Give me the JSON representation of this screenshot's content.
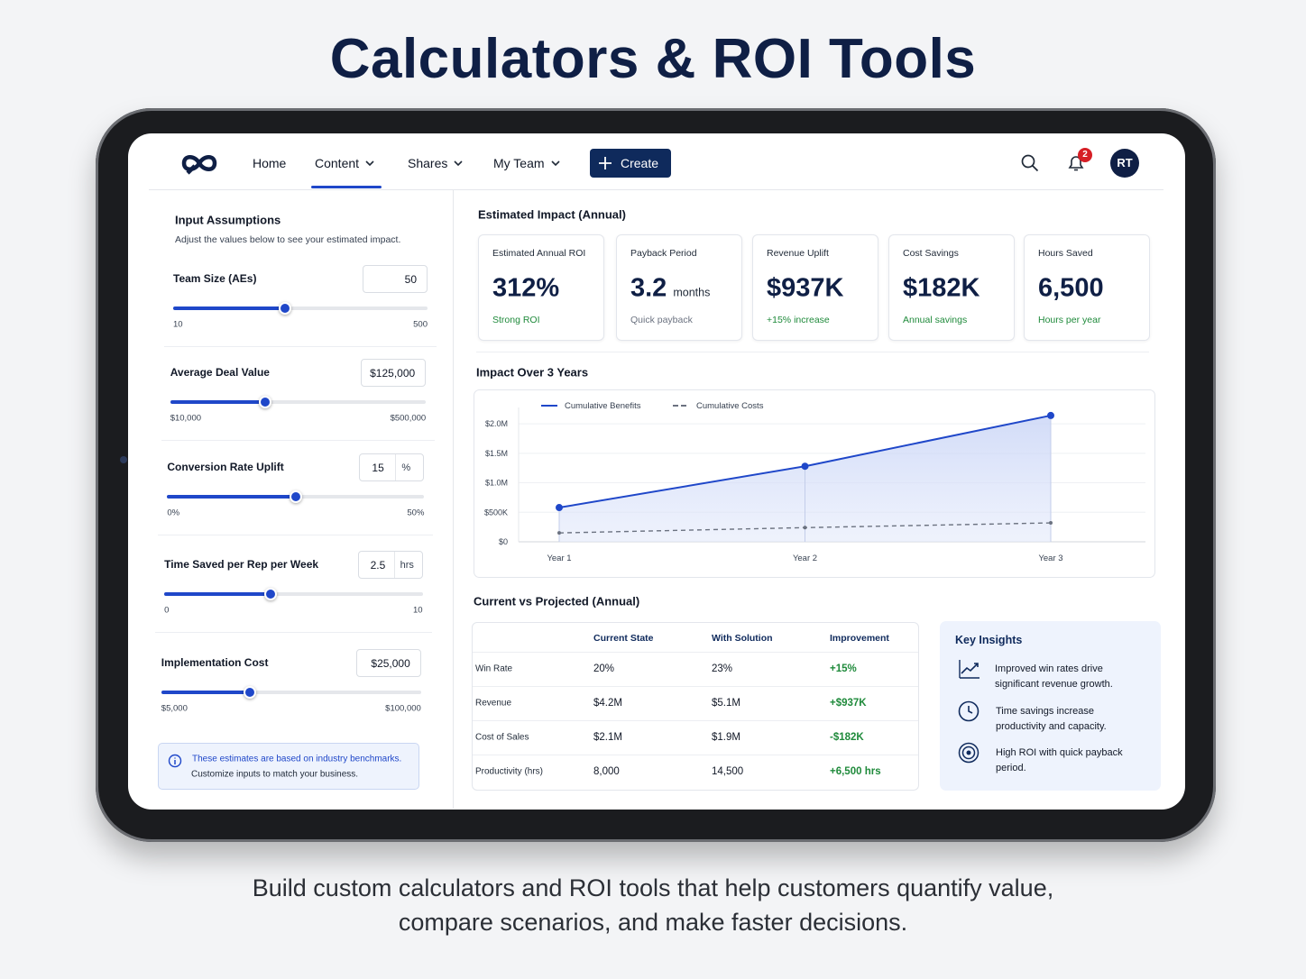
{
  "header": {
    "title": "Calculators & ROI Tools"
  },
  "nav": {
    "items": [
      "Home",
      "Content",
      "Shares",
      "My Team"
    ],
    "create": "Create",
    "notifications": 2,
    "avatar": "RT"
  },
  "inputs": {
    "title": "Input Assumptions",
    "subtitle": "Adjust the values below to see your estimated impact.",
    "fields": [
      {
        "label": "Team Size (AEs)",
        "value": 50,
        "min": 10,
        "max": 500
      },
      {
        "label": "Average Deal Value",
        "value": "$125,000",
        "min": "$10,000",
        "max": "$500,000"
      },
      {
        "label": "Conversion Rate Uplift",
        "value": 15,
        "unit": "%",
        "min": "0%",
        "max": "50%"
      },
      {
        "label": "Time Saved per Rep per Week",
        "value": 2.5,
        "unit": "hrs",
        "min": 0,
        "max": 10
      },
      {
        "label": "Implementation Cost",
        "value": "$25,000",
        "min": "$5,000",
        "max": "$100,000"
      }
    ]
  },
  "note": {
    "lines": [
      "These estimates are based on industry benchmarks.",
      "Customize inputs to match your business."
    ]
  },
  "impact": {
    "title": "Estimated Impact (Annual)",
    "cards": [
      {
        "label": "Estimated Annual ROI",
        "value": "312%",
        "note": "Strong ROI",
        "note_color": "#1f8a3b"
      },
      {
        "label": "Payback Period",
        "value": 3.2,
        "unit": "months",
        "note": "Quick payback",
        "note_color": "#6b7280"
      },
      {
        "label": "Revenue Uplift",
        "value": "$937K",
        "note": "+15% increase",
        "note_color": "#1f8a3b"
      },
      {
        "label": "Cost Savings",
        "value": "$182K",
        "note": "Annual savings",
        "note_color": "#1f8a3b"
      },
      {
        "label": "Hours Saved",
        "value": "6,500",
        "note": "Hours per year",
        "note_color": "#1f8a3b"
      }
    ]
  },
  "chart": {
    "type": "line",
    "title": "Impact Over 3 Years",
    "categories": [
      "Year 1",
      "Year 2",
      "Year 3"
    ],
    "series": [
      {
        "name": "Cumulative Benefits",
        "color": "#1f47c9",
        "values": [
          580000,
          1280000,
          2140000
        ]
      },
      {
        "name": "Cumulative Costs",
        "color": "#6b7280",
        "dashed": true,
        "values": [
          150000,
          240000,
          320000
        ]
      }
    ],
    "ylim": [
      0,
      2200000
    ],
    "yticks": [
      {
        "value": 0,
        "label": "$0"
      },
      {
        "value": 500000,
        "label": "$500K"
      },
      {
        "value": 1000000,
        "label": "$1.0M"
      },
      {
        "value": 1500000,
        "label": "$1.5M"
      },
      {
        "value": 2000000,
        "label": "$2.0M"
      }
    ],
    "grid": true
  },
  "comparison": {
    "title": "Current vs Projected (Annual)",
    "columns": [
      "Current State",
      "With Solution",
      "Improvement"
    ],
    "rows": [
      [
        "Win Rate",
        "20%",
        "23%",
        "+15%"
      ],
      [
        "Revenue",
        "$4.2M",
        "$5.1M",
        "+$937K"
      ],
      [
        "Cost of Sales",
        "$2.1M",
        "$1.9M",
        "-$182K"
      ],
      [
        "Productivity (hrs)",
        "8,000",
        "14,500",
        "+6,500 hrs"
      ]
    ]
  },
  "insights": {
    "title": "Key Insights",
    "items": [
      "Improved win rates drive significant revenue growth.",
      "Time savings increase productivity and capacity.",
      "High ROI with quick payback period."
    ]
  },
  "caption": "Build custom calculators and ROI tools that help customers quantify value, compare scenarios, and make faster decisions."
}
